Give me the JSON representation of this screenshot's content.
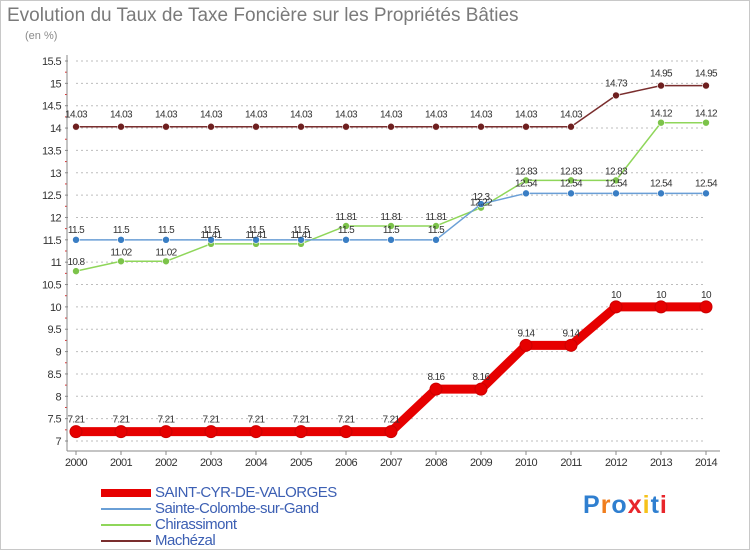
{
  "title": "Evolution du Taux de Taxe Foncière sur les Propriétés Bâties",
  "unit": "(en %)",
  "logo": {
    "letters": [
      "P",
      "r",
      "o",
      "x",
      "i",
      "t",
      "i"
    ],
    "colors": [
      "#2f7fd0",
      "#f07e1e",
      "#2f7fd0",
      "#e8262b",
      "#f6c21a",
      "#2f7fd0",
      "#e8262b"
    ]
  },
  "chart_data": {
    "type": "line",
    "title": "Evolution du Taux de Taxe Foncière sur les Propriétés Bâties",
    "ylabel": "(en %)",
    "xlabel": "",
    "x": [
      "2000",
      "2001",
      "2002",
      "2003",
      "2004",
      "2005",
      "2006",
      "2007",
      "2008",
      "2009",
      "2010",
      "2011",
      "2012",
      "2013",
      "2014"
    ],
    "ylim": [
      7,
      15.5
    ],
    "yticks": [
      "7",
      "7.5",
      "8",
      "8.5",
      "9",
      "9.5",
      "10",
      "10.5",
      "11",
      "11.5",
      "12",
      "12.5",
      "13",
      "13.5",
      "14",
      "14.5",
      "15",
      "15.5"
    ],
    "grid": "dashed horizontal",
    "legend": "bottom-left",
    "series": [
      {
        "name": "SAINT-CYR-DE-VALORGES",
        "color": "#e60000",
        "marker": "#e60000",
        "values": [
          7.21,
          7.21,
          7.21,
          7.21,
          7.21,
          7.21,
          7.21,
          7.21,
          8.16,
          8.16,
          9.14,
          9.14,
          10,
          10,
          10
        ],
        "labels": [
          "7.21",
          "7.21",
          "7.21",
          "7.21",
          "7.21",
          "7.21",
          "7.21",
          "7.21",
          "8.16",
          "8.16",
          "9.14",
          "9.14",
          "10",
          "10",
          "10"
        ]
      },
      {
        "name": "Sainte-Colombe-sur-Gand",
        "color": "#6a9fd6",
        "marker": "#3a7ec4",
        "values": [
          11.5,
          11.5,
          11.5,
          11.5,
          11.5,
          11.5,
          11.5,
          11.5,
          11.5,
          12.3,
          12.54,
          12.54,
          12.54,
          12.54,
          12.54
        ],
        "labels": [
          "11.5",
          "11.5",
          "11.5",
          "11.5",
          "11.5",
          "11.5",
          "11.5",
          "11.5",
          "11.5",
          "12.3",
          "12.54",
          "12.54",
          "12.54",
          "12.54",
          "12.54"
        ]
      },
      {
        "name": "Chirassimont",
        "color": "#8fd65a",
        "marker": "#7cc34a",
        "values": [
          10.8,
          11.02,
          11.02,
          11.41,
          11.41,
          11.41,
          11.81,
          11.81,
          11.81,
          12.22,
          12.83,
          12.83,
          12.83,
          14.12,
          14.12
        ],
        "labels": [
          "10.8",
          "11.02",
          "11.02",
          "11.41",
          "11.41",
          "11.41",
          "11.81",
          "11.81",
          "11.81",
          "12.22",
          "12.83",
          "12.83",
          "12.83",
          "14.12",
          "14.12"
        ]
      },
      {
        "name": "Machézal",
        "color": "#7a2e2e",
        "marker": "#6e1f1f",
        "values": [
          14.03,
          14.03,
          14.03,
          14.03,
          14.03,
          14.03,
          14.03,
          14.03,
          14.03,
          14.03,
          14.03,
          14.03,
          14.73,
          14.95,
          14.95
        ],
        "labels": [
          "14.03",
          "14.03",
          "14.03",
          "14.03",
          "14.03",
          "14.03",
          "14.03",
          "14.03",
          "14.03",
          "14.03",
          "14.03",
          "14.03",
          "14.73",
          "14.95",
          "14.95"
        ]
      }
    ]
  }
}
